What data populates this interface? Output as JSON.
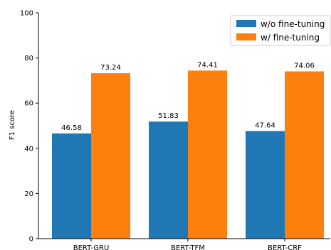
{
  "chart_data": {
    "type": "bar",
    "categories": [
      "BERT-GRU",
      "BERT-TFM",
      "BERT-CRF"
    ],
    "series": [
      {
        "name": "w/o fine-tuning",
        "values": [
          46.58,
          51.83,
          47.64
        ],
        "color": "#1f77b4"
      },
      {
        "name": "w/ fine-tuning",
        "values": [
          73.24,
          74.41,
          74.06
        ],
        "color": "#ff7f0e"
      }
    ],
    "value_labels": [
      [
        "46.58",
        "51.83",
        "47.64"
      ],
      [
        "73.24",
        "74.41",
        "74.06"
      ]
    ],
    "ylabel": "F1 score",
    "ylim": [
      0,
      100
    ],
    "yticks": [
      0,
      20,
      40,
      60,
      80,
      100
    ],
    "ytick_labels": [
      "0",
      "20",
      "40",
      "60",
      "80",
      "100"
    ],
    "grid": false,
    "legend_position": "top-right"
  }
}
